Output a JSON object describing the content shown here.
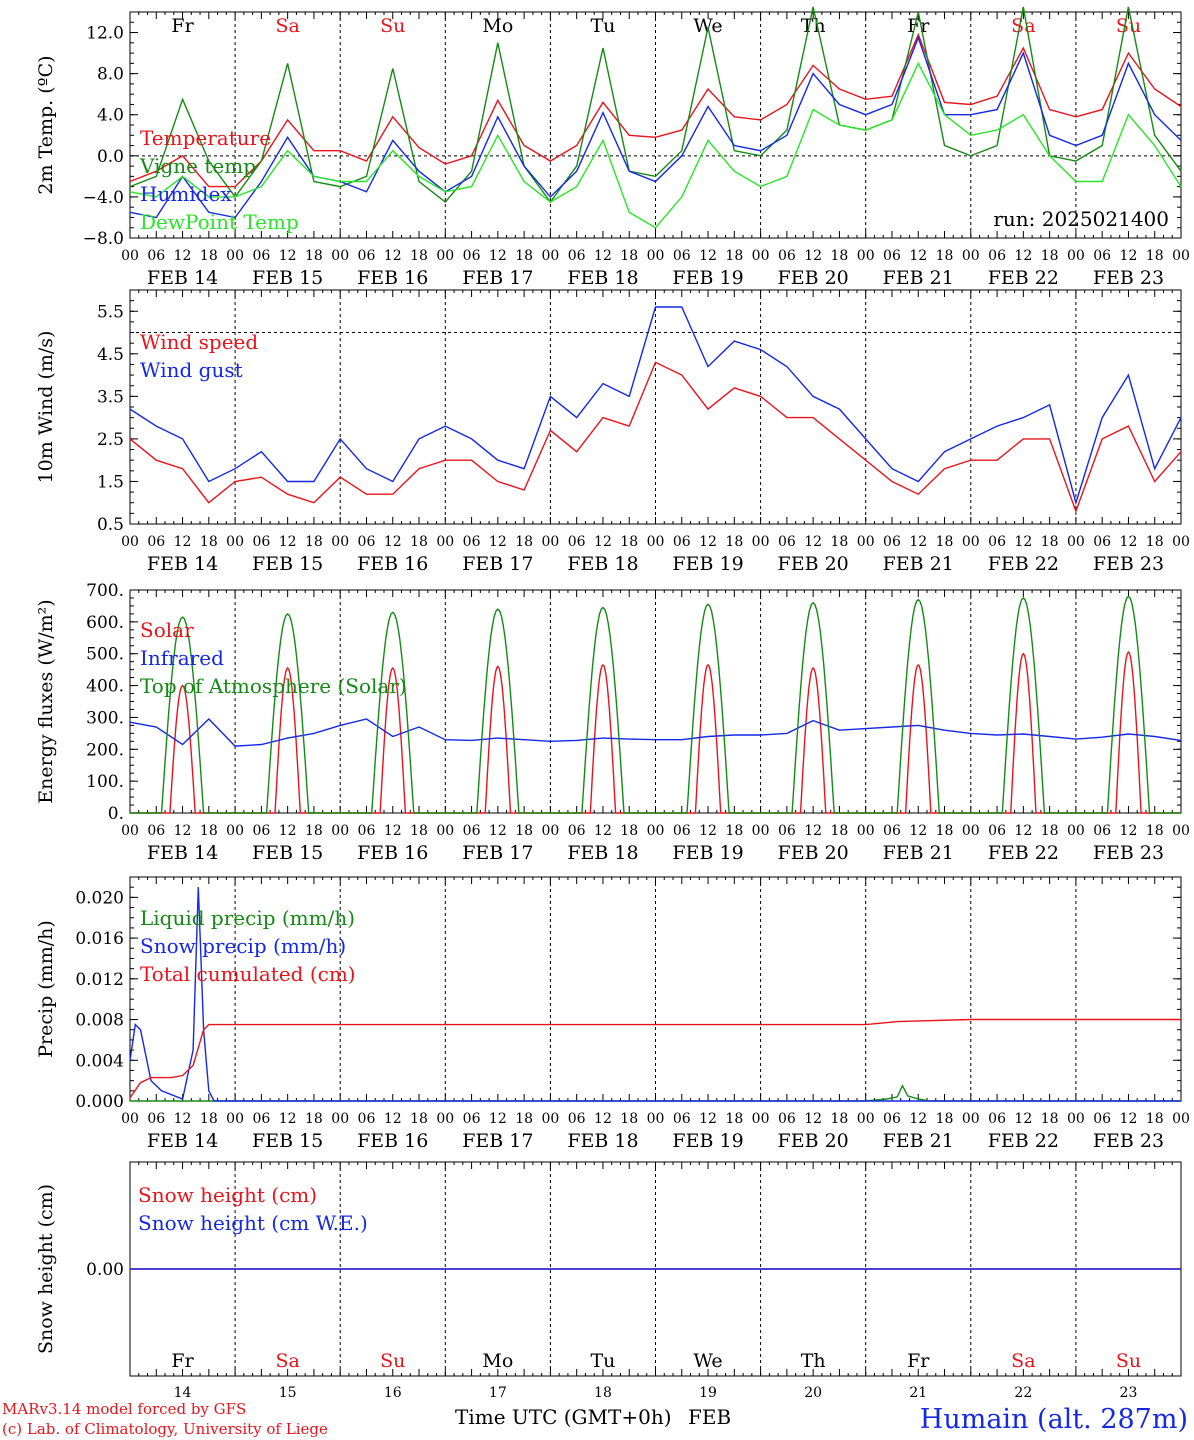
{
  "colors": {
    "red": "#e8141c",
    "green": "#148a14",
    "blue": "#1428e6",
    "lime": "#28e628",
    "black": "#000000"
  },
  "hours": [
    "00",
    "06",
    "12",
    "18"
  ],
  "dates": [
    "FEB 14",
    "FEB 15",
    "FEB 16",
    "FEB 17",
    "FEB 18",
    "FEB 19",
    "FEB 20",
    "FEB 21",
    "FEB 22",
    "FEB 23"
  ],
  "weekdays": [
    {
      "label": "Fr",
      "weekend": false
    },
    {
      "label": "Sa",
      "weekend": true
    },
    {
      "label": "Su",
      "weekend": true
    },
    {
      "label": "Mo",
      "weekend": false
    },
    {
      "label": "Tu",
      "weekend": false
    },
    {
      "label": "We",
      "weekend": false
    },
    {
      "label": "Th",
      "weekend": false
    },
    {
      "label": "Fr",
      "weekend": false
    },
    {
      "label": "Sa",
      "weekend": true
    },
    {
      "label": "Su",
      "weekend": true
    }
  ],
  "bottom_days": [
    "14",
    "15",
    "16",
    "17",
    "18",
    "19",
    "20",
    "21",
    "22",
    "23"
  ],
  "footer": {
    "credit1": "MARv3.14 model forced by GFS",
    "credit2": "(c) Lab. of Climatology, University of Liege",
    "xlabel": "Time UTC (GMT+0h)",
    "month": "FEB",
    "station": "Humain (alt. 287m)"
  },
  "chart_data": [
    {
      "id": "temperature",
      "type": "line",
      "ylabel": "2m Temp. (ºC)",
      "ylim": [
        -8,
        14
      ],
      "yticks": [
        "12.0",
        "8.0",
        "4.0",
        "0.0",
        "−4.0",
        "−8.0"
      ],
      "ytick_values": [
        12,
        8,
        4,
        0,
        -4,
        -8
      ],
      "ref_line": 0,
      "annotation": "run: 2025021400",
      "x_days": [
        0,
        0.25,
        0.5,
        0.75,
        1,
        1.25,
        1.5,
        1.75,
        2,
        2.25,
        2.5,
        2.75,
        3,
        3.25,
        3.5,
        3.75,
        4,
        4.25,
        4.5,
        4.75,
        5,
        5.25,
        5.5,
        5.75,
        6,
        6.25,
        6.5,
        6.75,
        7,
        7.25,
        7.5,
        7.75,
        8,
        8.25,
        8.5,
        8.75,
        9,
        9.25,
        9.5,
        9.75,
        10
      ],
      "series": [
        {
          "name": "Temperature",
          "color_key": "red",
          "values": [
            -2.5,
            -1.5,
            0.0,
            -3.0,
            -3.0,
            -0.5,
            3.5,
            0.5,
            0.5,
            -0.5,
            3.8,
            0.8,
            -0.8,
            0.0,
            5.4,
            1.0,
            -0.5,
            1.0,
            5.2,
            2.0,
            1.8,
            2.5,
            6.5,
            3.8,
            3.5,
            5.0,
            8.8,
            6.5,
            5.5,
            5.8,
            11.8,
            5.2,
            5.0,
            5.8,
            10.5,
            4.5,
            3.8,
            4.5,
            10.0,
            6.5,
            4.8
          ]
        },
        {
          "name": "Vigne temp",
          "color_key": "green",
          "values": [
            -3.0,
            -2.0,
            5.5,
            -0.5,
            -4.0,
            -0.5,
            9.0,
            -2.5,
            -3.0,
            -2.0,
            8.5,
            -2.5,
            -4.5,
            -1.5,
            11.0,
            -1.0,
            -4.5,
            -1.0,
            10.5,
            -1.5,
            -2.0,
            0.5,
            12.5,
            0.5,
            0.0,
            2.5,
            14.5,
            3.0,
            2.5,
            3.5,
            14.0,
            1.0,
            0.0,
            1.0,
            14.5,
            0.0,
            -0.5,
            1.0,
            14.5,
            2.0,
            -1.5
          ]
        },
        {
          "name": "Humidex",
          "color_key": "blue",
          "values": [
            -5.5,
            -6.0,
            -2.0,
            -5.5,
            -6.0,
            -2.5,
            1.8,
            -2.0,
            -2.5,
            -3.5,
            1.5,
            -1.5,
            -3.5,
            -2.0,
            3.8,
            -1.0,
            -4.0,
            -1.5,
            4.2,
            -1.5,
            -2.5,
            0.0,
            4.8,
            1.0,
            0.5,
            2.0,
            8.0,
            5.0,
            4.0,
            5.0,
            11.5,
            4.0,
            4.0,
            4.5,
            10.0,
            2.0,
            1.0,
            2.0,
            9.0,
            4.0,
            1.5
          ]
        },
        {
          "name": "DewPoint Temp",
          "color_key": "lime",
          "values": [
            -3.5,
            -4.0,
            -2.0,
            -4.0,
            -4.0,
            -3.0,
            0.5,
            -2.0,
            -2.5,
            -2.5,
            0.5,
            -2.0,
            -3.5,
            -3.0,
            2.0,
            -2.5,
            -4.5,
            -3.0,
            1.5,
            -5.5,
            -7.0,
            -4.0,
            1.5,
            -1.5,
            -3.0,
            -2.0,
            4.5,
            3.0,
            2.5,
            3.5,
            9.0,
            4.0,
            2.0,
            2.5,
            4.0,
            0.0,
            -2.5,
            -2.5,
            4.0,
            1.0,
            -3.0
          ]
        }
      ]
    },
    {
      "id": "wind",
      "type": "line",
      "ylabel": "10m Wind (m/s)",
      "ylim": [
        0.5,
        6.0
      ],
      "yticks": [
        "5.5",
        "4.5",
        "3.5",
        "2.5",
        "1.5",
        "0.5"
      ],
      "ytick_values": [
        5.5,
        4.5,
        3.5,
        2.5,
        1.5,
        0.5
      ],
      "ref_line": 5.0,
      "x_days": [
        0,
        0.25,
        0.5,
        0.75,
        1,
        1.25,
        1.5,
        1.75,
        2,
        2.25,
        2.5,
        2.75,
        3,
        3.25,
        3.5,
        3.75,
        4,
        4.25,
        4.5,
        4.75,
        5,
        5.25,
        5.5,
        5.75,
        6,
        6.25,
        6.5,
        6.75,
        7,
        7.25,
        7.5,
        7.75,
        8,
        8.25,
        8.5,
        8.75,
        9,
        9.25,
        9.5,
        9.75,
        10
      ],
      "series": [
        {
          "name": "Wind speed",
          "color_key": "red",
          "values": [
            2.5,
            2.0,
            1.8,
            1.0,
            1.5,
            1.6,
            1.2,
            1.0,
            1.6,
            1.2,
            1.2,
            1.8,
            2.0,
            2.0,
            1.5,
            1.3,
            2.7,
            2.2,
            3.0,
            2.8,
            4.3,
            4.0,
            3.2,
            3.7,
            3.5,
            3.0,
            3.0,
            2.5,
            2.0,
            1.5,
            1.2,
            1.8,
            2.0,
            2.0,
            2.5,
            2.5,
            0.8,
            2.5,
            2.8,
            1.5,
            2.2
          ]
        },
        {
          "name": "Wind gust",
          "color_key": "blue",
          "values": [
            3.2,
            2.8,
            2.5,
            1.5,
            1.8,
            2.2,
            1.5,
            1.5,
            2.5,
            1.8,
            1.5,
            2.5,
            2.8,
            2.5,
            2.0,
            1.8,
            3.5,
            3.0,
            3.8,
            3.5,
            5.6,
            5.6,
            4.2,
            4.8,
            4.6,
            4.2,
            3.5,
            3.2,
            2.5,
            1.8,
            1.5,
            2.2,
            2.5,
            2.8,
            3.0,
            3.3,
            1.0,
            3.0,
            4.0,
            1.8,
            3.0
          ]
        }
      ]
    },
    {
      "id": "energy",
      "type": "line",
      "ylabel": "Energy fluxes (W/m²)",
      "ylim": [
        0,
        700
      ],
      "yticks": [
        "700.",
        "600.",
        "500.",
        "400.",
        "300.",
        "200.",
        "100.",
        "0."
      ],
      "ytick_values": [
        700,
        600,
        500,
        400,
        300,
        200,
        100,
        0
      ],
      "series": [
        {
          "name": "Solar",
          "color_key": "red",
          "peak_values": [
            400,
            455,
            455,
            460,
            465,
            465,
            455,
            465,
            500,
            505
          ]
        },
        {
          "name": "Infrared",
          "color_key": "blue",
          "x_days": [
            0,
            0.25,
            0.5,
            0.75,
            1,
            1.25,
            1.5,
            1.75,
            2,
            2.25,
            2.5,
            2.75,
            3,
            3.25,
            3.5,
            3.75,
            4,
            4.25,
            4.5,
            4.75,
            5,
            5.25,
            5.5,
            5.75,
            6,
            6.25,
            6.5,
            6.75,
            7,
            7.25,
            7.5,
            7.75,
            8,
            8.25,
            8.5,
            8.75,
            9,
            9.25,
            9.5,
            9.75,
            10
          ],
          "values": [
            285,
            270,
            215,
            295,
            210,
            215,
            235,
            250,
            275,
            295,
            240,
            270,
            230,
            228,
            235,
            230,
            225,
            228,
            235,
            232,
            230,
            230,
            240,
            245,
            245,
            250,
            290,
            260,
            265,
            270,
            275,
            260,
            250,
            245,
            248,
            240,
            232,
            238,
            248,
            240,
            228
          ]
        },
        {
          "name": "Top of Atmosphere (Solar)",
          "color_key": "green",
          "peak_values": [
            615,
            625,
            630,
            640,
            645,
            655,
            660,
            670,
            675,
            680
          ]
        }
      ]
    },
    {
      "id": "precip",
      "type": "line",
      "ylabel": "Precip (mm/h)",
      "ylim": [
        0,
        0.022
      ],
      "yticks": [
        "0.020",
        "0.016",
        "0.012",
        "0.008",
        "0.004",
        "0.000"
      ],
      "ytick_values": [
        0.02,
        0.016,
        0.012,
        0.008,
        0.004,
        0.0
      ],
      "series": [
        {
          "name": "Liquid precip (mm/h)",
          "color_key": "green",
          "x_days": [
            0,
            7.0,
            7.2,
            7.3,
            7.35,
            7.4,
            7.5,
            7.6,
            10
          ],
          "values": [
            0,
            0,
            0.0002,
            0.0004,
            0.0015,
            0.0005,
            0.0002,
            0,
            0
          ]
        },
        {
          "name": "Snow precip (mm/h)",
          "color_key": "blue",
          "x_days": [
            0,
            0.05,
            0.1,
            0.2,
            0.3,
            0.5,
            0.6,
            0.65,
            0.7,
            0.75,
            0.8,
            10
          ],
          "values": [
            0.004,
            0.0075,
            0.007,
            0.002,
            0.001,
            0.0002,
            0.005,
            0.021,
            0.007,
            0.001,
            0,
            0
          ]
        },
        {
          "name": "Total cumulated (cm)",
          "color_key": "red",
          "x_days": [
            0,
            0.1,
            0.2,
            0.4,
            0.5,
            0.6,
            0.7,
            0.75,
            7.0,
            7.3,
            8.0,
            10
          ],
          "values": [
            0.0003,
            0.0018,
            0.0023,
            0.0023,
            0.0025,
            0.0035,
            0.007,
            0.0075,
            0.0075,
            0.0078,
            0.008,
            0.008
          ]
        }
      ]
    },
    {
      "id": "snow",
      "type": "line",
      "ylabel": "Snow height (cm)",
      "ylim": [
        -1,
        1
      ],
      "yticks": [
        "0.00"
      ],
      "ytick_values": [
        0
      ],
      "series": [
        {
          "name": "Snow height (cm)",
          "color_key": "red",
          "x_days": [
            0,
            10
          ],
          "values": [
            0,
            0
          ]
        },
        {
          "name": "Snow height (cm W.E.)",
          "color_key": "blue",
          "x_days": [
            0,
            10
          ],
          "values": [
            0,
            0
          ]
        }
      ]
    }
  ]
}
